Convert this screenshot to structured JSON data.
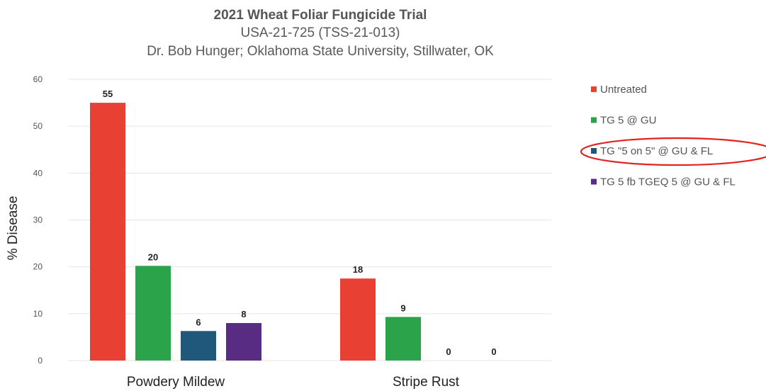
{
  "chart_data": {
    "type": "bar",
    "title": "2021 Wheat Foliar Fungicide Trial",
    "subtitle_lines": [
      "USA-21-725 (TSS-21-013)",
      "Dr. Bob Hunger; Oklahoma State University, Stillwater, OK"
    ],
    "xlabel": "",
    "ylabel": "% Disease",
    "ylim": [
      0,
      60
    ],
    "yticks": [
      "0",
      "10",
      "20",
      "30",
      "40",
      "50",
      "60"
    ],
    "categories": [
      "Powdery Mildew",
      "Stripe Rust"
    ],
    "series": [
      {
        "name": "Untreated",
        "color": "#e84133",
        "values": [
          55,
          17.5
        ],
        "labels": [
          "55",
          "18"
        ]
      },
      {
        "name": "TG 5 @ GU",
        "color": "#2ba34a",
        "values": [
          20.2,
          9.3
        ],
        "labels": [
          "20",
          "9"
        ]
      },
      {
        "name": "TG \"5 on 5\" @ GU & FL",
        "color": "#1f587a",
        "values": [
          6.3,
          0
        ],
        "labels": [
          "6",
          "0"
        ]
      },
      {
        "name": "TG 5 fb TGEQ 5 @ GU & FL",
        "color": "#582c83",
        "values": [
          8,
          0
        ],
        "labels": [
          "8",
          "0"
        ]
      }
    ],
    "grid": true,
    "legend_position": "right",
    "highlight": {
      "series_index": 2,
      "shape": "ellipse",
      "color": "#e32222"
    }
  }
}
